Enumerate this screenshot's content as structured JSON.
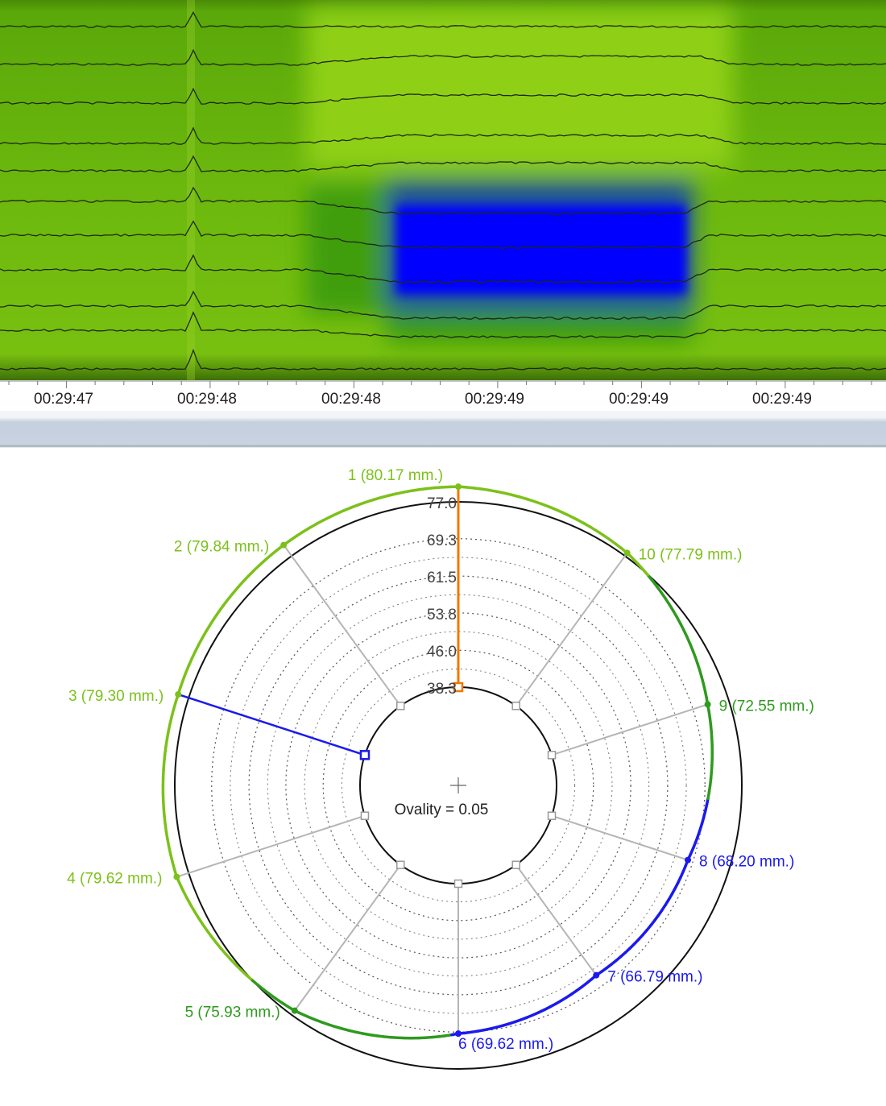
{
  "heatmap": {
    "time_labels": [
      "00:29:47",
      "00:29:48",
      "00:29:48",
      "00:29:49",
      "00:29:49",
      "00:29:49"
    ],
    "colors": {
      "high": "#8fcf12",
      "mid": "#3f9e0a",
      "low": "#0000ff"
    }
  },
  "chart_data": {
    "type": "polar",
    "title": "",
    "sensor_count": 10,
    "radial_ticks": [
      "77.0",
      "69.3",
      "61.5",
      "53.8",
      "46.0",
      "38.3"
    ],
    "radial_tick_values": [
      77.0,
      69.3,
      61.5,
      53.8,
      46.0,
      38.3
    ],
    "rlim": [
      38.3,
      77.0
    ],
    "unit": "mm.",
    "points": [
      {
        "id": 1,
        "value": 80.17,
        "label": "1 (80.17 mm.)"
      },
      {
        "id": 2,
        "value": 79.84,
        "label": "2 (79.84 mm.)"
      },
      {
        "id": 3,
        "value": 79.3,
        "label": "3 (79.30 mm.)"
      },
      {
        "id": 4,
        "value": 79.62,
        "label": "4 (79.62 mm.)"
      },
      {
        "id": 5,
        "value": 75.93,
        "label": "5 (75.93 mm.)"
      },
      {
        "id": 6,
        "value": 69.62,
        "label": "6 (69.62 mm.)"
      },
      {
        "id": 7,
        "value": 66.79,
        "label": "7 (66.79 mm.)"
      },
      {
        "id": 8,
        "value": 68.2,
        "label": "8 (68.20 mm.)"
      },
      {
        "id": 9,
        "value": 72.55,
        "label": "9 (72.55 mm.)"
      },
      {
        "id": 10,
        "value": 77.79,
        "label": "10 (77.79 mm.)"
      }
    ],
    "highlighted_sensor": 1,
    "selected_sensor": 3,
    "ovality_label": "Ovality = 0.05",
    "colors": {
      "high": "#7cc11a",
      "mid": "#2e9a1e",
      "low": "#1a1aee",
      "highlight": "#f07800",
      "selected": "#1a1aee"
    }
  }
}
